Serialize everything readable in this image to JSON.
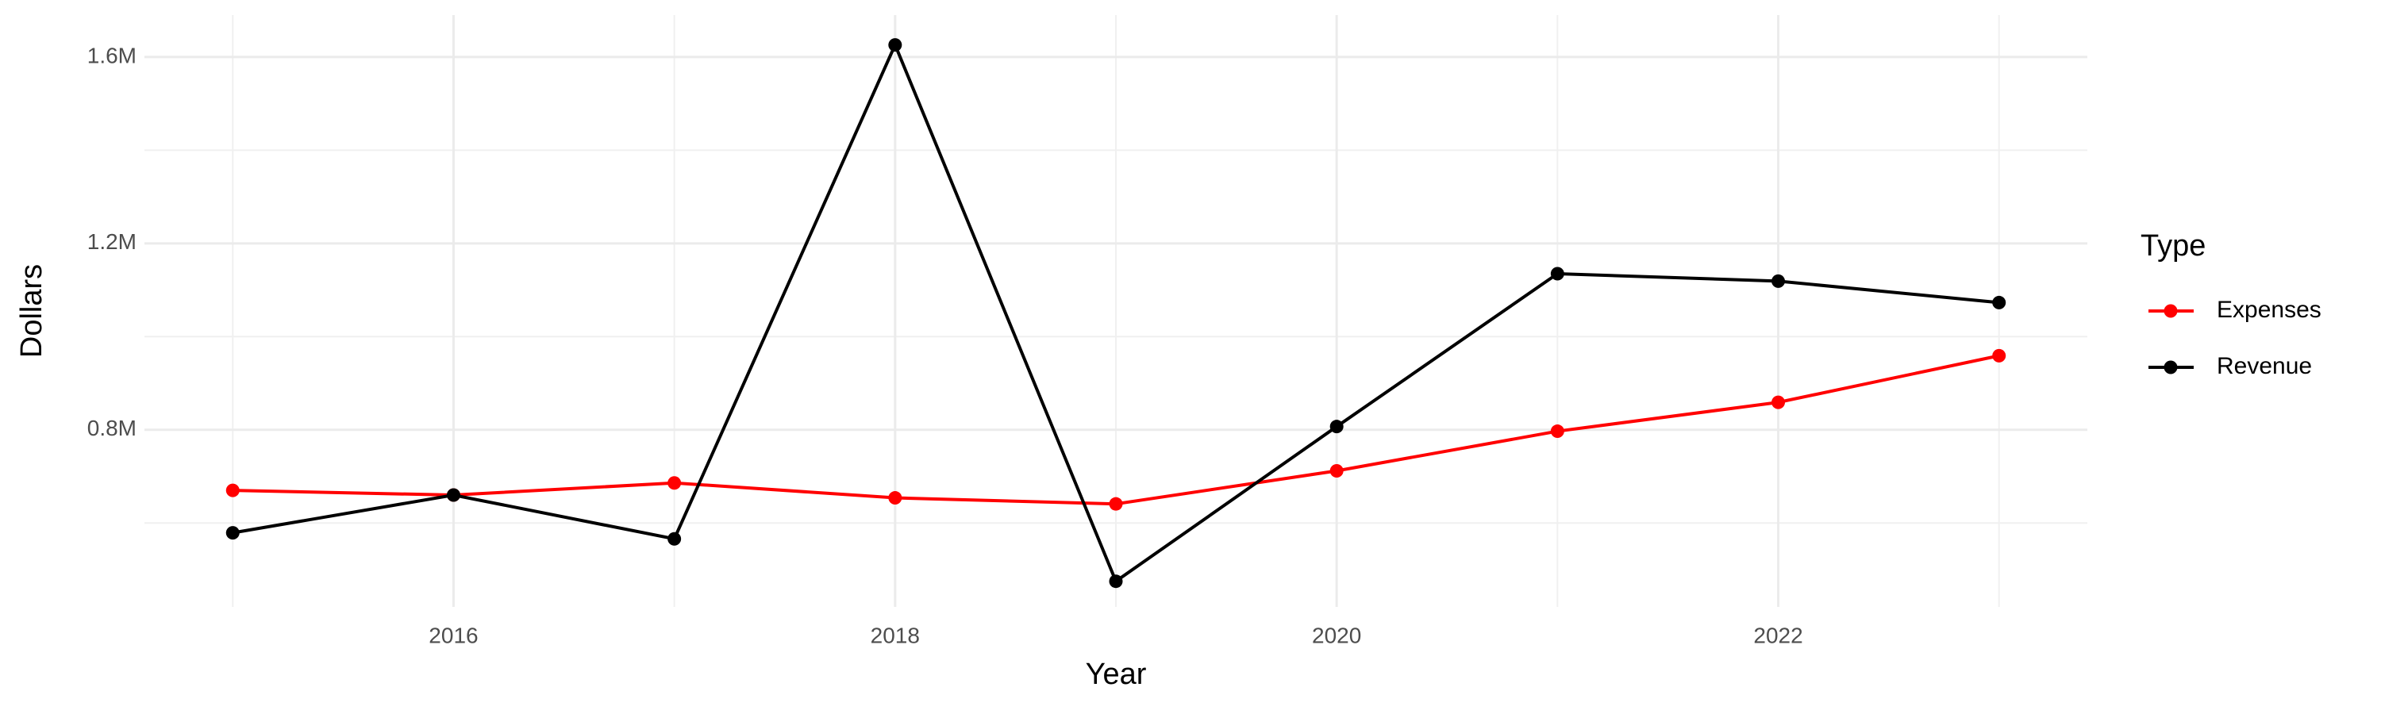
{
  "chart_data": {
    "type": "line",
    "x_label": "Year",
    "y_label": "Dollars",
    "legend_title": "Type",
    "x": [
      2015,
      2016,
      2017,
      2018,
      2019,
      2020,
      2021,
      2022,
      2023
    ],
    "series": [
      {
        "name": "Expenses",
        "color": "#ff0000",
        "values": [
          670000,
          660000,
          686000,
          654000,
          641000,
          712000,
          797000,
          859000,
          959000
        ]
      },
      {
        "name": "Revenue",
        "color": "#000000",
        "values": [
          579000,
          660000,
          566000,
          1626000,
          475000,
          807000,
          1135000,
          1119000,
          1073000
        ]
      }
    ],
    "xlim": [
      2014.6,
      2023.4
    ],
    "xticks": [
      2016,
      2018,
      2020,
      2022
    ],
    "ylim": [
      420000,
      1690000
    ],
    "yticks": [
      {
        "value": 800000,
        "label": "0.8M"
      },
      {
        "value": 1200000,
        "label": "1.2M"
      },
      {
        "value": 1600000,
        "label": "1.6M"
      }
    ],
    "grid": true,
    "legend": "right"
  }
}
